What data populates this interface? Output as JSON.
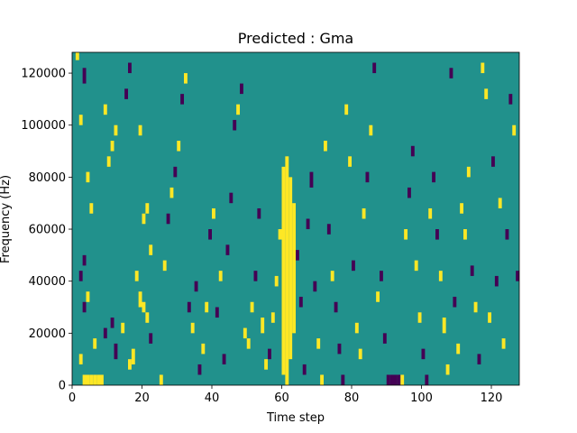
{
  "chart_data": {
    "type": "heatmap",
    "title": "Predicted : Gma",
    "xlabel": "Time step",
    "ylabel": "Frequency (Hz)",
    "xlim": [
      0,
      128
    ],
    "ylim": [
      0,
      128000
    ],
    "xticks": [
      0,
      20,
      40,
      60,
      80,
      100,
      120
    ],
    "yticks": [
      0,
      20000,
      40000,
      60000,
      80000,
      100000,
      120000
    ],
    "xtick_labels": [
      "0",
      "20",
      "40",
      "60",
      "80",
      "100",
      "120"
    ],
    "ytick_labels": [
      "0",
      "20000",
      "40000",
      "60000",
      "80000",
      "100000",
      "120000"
    ],
    "colors": {
      "background": "#21918c",
      "high": "#fde725",
      "low": "#440154"
    },
    "n_time_steps": 128,
    "n_freq_bins": 128,
    "freq_bin_width_hz": 1000,
    "background_value": 0,
    "cells": [
      {
        "t": 1,
        "f0": 125000,
        "f1": 128000,
        "v": 1
      },
      {
        "t": 2,
        "f0": 100000,
        "f1": 104000,
        "v": 1
      },
      {
        "t": 3,
        "f0": 116000,
        "f1": 122000,
        "v": -1
      },
      {
        "t": 4,
        "f0": 78000,
        "f1": 82000,
        "v": 1
      },
      {
        "t": 5,
        "f0": 66000,
        "f1": 70000,
        "v": 1
      },
      {
        "t": 2,
        "f0": 40000,
        "f1": 44000,
        "v": -1
      },
      {
        "t": 3,
        "f0": 46000,
        "f1": 50000,
        "v": -1
      },
      {
        "t": 2,
        "f0": 8000,
        "f1": 12000,
        "v": 1
      },
      {
        "t": 3,
        "f0": 0,
        "f1": 4000,
        "v": 1
      },
      {
        "t": 4,
        "f0": 0,
        "f1": 4000,
        "v": 1
      },
      {
        "t": 5,
        "f0": 0,
        "f1": 4000,
        "v": 1
      },
      {
        "t": 6,
        "f0": 0,
        "f1": 4000,
        "v": 1
      },
      {
        "t": 7,
        "f0": 0,
        "f1": 4000,
        "v": 1
      },
      {
        "t": 8,
        "f0": 0,
        "f1": 4000,
        "v": 1
      },
      {
        "t": 3,
        "f0": 28000,
        "f1": 32000,
        "v": -1
      },
      {
        "t": 4,
        "f0": 32000,
        "f1": 36000,
        "v": 1
      },
      {
        "t": 6,
        "f0": 14000,
        "f1": 18000,
        "v": 1
      },
      {
        "t": 9,
        "f0": 18000,
        "f1": 22000,
        "v": -1
      },
      {
        "t": 11,
        "f0": 22000,
        "f1": 26000,
        "v": -1
      },
      {
        "t": 12,
        "f0": 10000,
        "f1": 16000,
        "v": -1
      },
      {
        "t": 10,
        "f0": 84000,
        "f1": 88000,
        "v": 1
      },
      {
        "t": 11,
        "f0": 90000,
        "f1": 94000,
        "v": 1
      },
      {
        "t": 12,
        "f0": 96000,
        "f1": 100000,
        "v": 1
      },
      {
        "t": 9,
        "f0": 104000,
        "f1": 108000,
        "v": 1
      },
      {
        "t": 14,
        "f0": 20000,
        "f1": 24000,
        "v": 1
      },
      {
        "t": 16,
        "f0": 6000,
        "f1": 10000,
        "v": 1
      },
      {
        "t": 17,
        "f0": 8000,
        "f1": 14000,
        "v": 1
      },
      {
        "t": 18,
        "f0": 40000,
        "f1": 44000,
        "v": 1
      },
      {
        "t": 19,
        "f0": 30000,
        "f1": 36000,
        "v": 1
      },
      {
        "t": 20,
        "f0": 62000,
        "f1": 66000,
        "v": 1
      },
      {
        "t": 21,
        "f0": 66000,
        "f1": 70000,
        "v": 1
      },
      {
        "t": 22,
        "f0": 50000,
        "f1": 54000,
        "v": 1
      },
      {
        "t": 15,
        "f0": 110000,
        "f1": 114000,
        "v": -1
      },
      {
        "t": 16,
        "f0": 120000,
        "f1": 124000,
        "v": -1
      },
      {
        "t": 19,
        "f0": 96000,
        "f1": 100000,
        "v": 1
      },
      {
        "t": 20,
        "f0": 28000,
        "f1": 32000,
        "v": 1
      },
      {
        "t": 21,
        "f0": 24000,
        "f1": 28000,
        "v": 1
      },
      {
        "t": 22,
        "f0": 16000,
        "f1": 20000,
        "v": -1
      },
      {
        "t": 25,
        "f0": 0,
        "f1": 4000,
        "v": 1
      },
      {
        "t": 26,
        "f0": 44000,
        "f1": 48000,
        "v": 1
      },
      {
        "t": 27,
        "f0": 62000,
        "f1": 66000,
        "v": -1
      },
      {
        "t": 28,
        "f0": 72000,
        "f1": 76000,
        "v": 1
      },
      {
        "t": 29,
        "f0": 80000,
        "f1": 84000,
        "v": -1
      },
      {
        "t": 30,
        "f0": 90000,
        "f1": 94000,
        "v": 1
      },
      {
        "t": 31,
        "f0": 108000,
        "f1": 112000,
        "v": -1
      },
      {
        "t": 32,
        "f0": 116000,
        "f1": 120000,
        "v": 1
      },
      {
        "t": 33,
        "f0": 28000,
        "f1": 32000,
        "v": -1
      },
      {
        "t": 34,
        "f0": 20000,
        "f1": 24000,
        "v": 1
      },
      {
        "t": 35,
        "f0": 36000,
        "f1": 40000,
        "v": -1
      },
      {
        "t": 36,
        "f0": 4000,
        "f1": 8000,
        "v": -1
      },
      {
        "t": 37,
        "f0": 12000,
        "f1": 16000,
        "v": 1
      },
      {
        "t": 38,
        "f0": 28000,
        "f1": 32000,
        "v": 1
      },
      {
        "t": 39,
        "f0": 56000,
        "f1": 60000,
        "v": -1
      },
      {
        "t": 40,
        "f0": 64000,
        "f1": 68000,
        "v": 1
      },
      {
        "t": 41,
        "f0": 26000,
        "f1": 30000,
        "v": -1
      },
      {
        "t": 42,
        "f0": 40000,
        "f1": 44000,
        "v": 1
      },
      {
        "t": 43,
        "f0": 8000,
        "f1": 12000,
        "v": -1
      },
      {
        "t": 44,
        "f0": 50000,
        "f1": 54000,
        "v": -1
      },
      {
        "t": 45,
        "f0": 70000,
        "f1": 74000,
        "v": -1
      },
      {
        "t": 46,
        "f0": 98000,
        "f1": 102000,
        "v": -1
      },
      {
        "t": 47,
        "f0": 104000,
        "f1": 108000,
        "v": 1
      },
      {
        "t": 48,
        "f0": 112000,
        "f1": 116000,
        "v": -1
      },
      {
        "t": 49,
        "f0": 18000,
        "f1": 22000,
        "v": 1
      },
      {
        "t": 50,
        "f0": 14000,
        "f1": 18000,
        "v": 1
      },
      {
        "t": 51,
        "f0": 28000,
        "f1": 32000,
        "v": 1
      },
      {
        "t": 52,
        "f0": 40000,
        "f1": 44000,
        "v": -1
      },
      {
        "t": 53,
        "f0": 64000,
        "f1": 68000,
        "v": -1
      },
      {
        "t": 54,
        "f0": 20000,
        "f1": 26000,
        "v": 1
      },
      {
        "t": 55,
        "f0": 6000,
        "f1": 10000,
        "v": 1
      },
      {
        "t": 56,
        "f0": 10000,
        "f1": 14000,
        "v": -1
      },
      {
        "t": 57,
        "f0": 24000,
        "f1": 28000,
        "v": 1
      },
      {
        "t": 58,
        "f0": 38000,
        "f1": 42000,
        "v": 1
      },
      {
        "t": 59,
        "f0": 56000,
        "f1": 60000,
        "v": 1
      },
      {
        "t": 60,
        "f0": 4000,
        "f1": 84000,
        "v": 1
      },
      {
        "t": 61,
        "f0": 0,
        "f1": 88000,
        "v": 1
      },
      {
        "t": 62,
        "f0": 10000,
        "f1": 80000,
        "v": 1
      },
      {
        "t": 63,
        "f0": 20000,
        "f1": 70000,
        "v": 1
      },
      {
        "t": 64,
        "f0": 48000,
        "f1": 52000,
        "v": -1
      },
      {
        "t": 65,
        "f0": 30000,
        "f1": 34000,
        "v": -1
      },
      {
        "t": 66,
        "f0": 4000,
        "f1": 8000,
        "v": -1
      },
      {
        "t": 67,
        "f0": 60000,
        "f1": 64000,
        "v": -1
      },
      {
        "t": 68,
        "f0": 76000,
        "f1": 82000,
        "v": -1
      },
      {
        "t": 69,
        "f0": 36000,
        "f1": 40000,
        "v": -1
      },
      {
        "t": 70,
        "f0": 14000,
        "f1": 18000,
        "v": 1
      },
      {
        "t": 71,
        "f0": 0,
        "f1": 4000,
        "v": 1
      },
      {
        "t": 72,
        "f0": 90000,
        "f1": 94000,
        "v": 1
      },
      {
        "t": 73,
        "f0": 58000,
        "f1": 62000,
        "v": -1
      },
      {
        "t": 74,
        "f0": 40000,
        "f1": 44000,
        "v": 1
      },
      {
        "t": 75,
        "f0": 28000,
        "f1": 32000,
        "v": -1
      },
      {
        "t": 76,
        "f0": 12000,
        "f1": 16000,
        "v": -1
      },
      {
        "t": 77,
        "f0": 0,
        "f1": 4000,
        "v": -1
      },
      {
        "t": 78,
        "f0": 104000,
        "f1": 108000,
        "v": 1
      },
      {
        "t": 79,
        "f0": 84000,
        "f1": 88000,
        "v": 1
      },
      {
        "t": 80,
        "f0": 44000,
        "f1": 48000,
        "v": -1
      },
      {
        "t": 81,
        "f0": 20000,
        "f1": 24000,
        "v": 1
      },
      {
        "t": 82,
        "f0": 10000,
        "f1": 14000,
        "v": 1
      },
      {
        "t": 83,
        "f0": 64000,
        "f1": 68000,
        "v": 1
      },
      {
        "t": 84,
        "f0": 78000,
        "f1": 82000,
        "v": -1
      },
      {
        "t": 85,
        "f0": 96000,
        "f1": 100000,
        "v": 1
      },
      {
        "t": 86,
        "f0": 120000,
        "f1": 124000,
        "v": -1
      },
      {
        "t": 87,
        "f0": 32000,
        "f1": 36000,
        "v": 1
      },
      {
        "t": 88,
        "f0": 40000,
        "f1": 44000,
        "v": -1
      },
      {
        "t": 89,
        "f0": 16000,
        "f1": 20000,
        "v": -1
      },
      {
        "t": 90,
        "f0": 0,
        "f1": 4000,
        "v": -1
      },
      {
        "t": 91,
        "f0": 0,
        "f1": 4000,
        "v": -1
      },
      {
        "t": 92,
        "f0": 0,
        "f1": 4000,
        "v": -1
      },
      {
        "t": 93,
        "f0": 0,
        "f1": 4000,
        "v": -1
      },
      {
        "t": 94,
        "f0": 0,
        "f1": 4000,
        "v": 1
      },
      {
        "t": 95,
        "f0": 56000,
        "f1": 60000,
        "v": 1
      },
      {
        "t": 96,
        "f0": 72000,
        "f1": 76000,
        "v": -1
      },
      {
        "t": 97,
        "f0": 88000,
        "f1": 92000,
        "v": -1
      },
      {
        "t": 98,
        "f0": 44000,
        "f1": 48000,
        "v": 1
      },
      {
        "t": 99,
        "f0": 24000,
        "f1": 28000,
        "v": 1
      },
      {
        "t": 100,
        "f0": 10000,
        "f1": 14000,
        "v": -1
      },
      {
        "t": 101,
        "f0": 0,
        "f1": 4000,
        "v": -1
      },
      {
        "t": 102,
        "f0": 64000,
        "f1": 68000,
        "v": 1
      },
      {
        "t": 103,
        "f0": 78000,
        "f1": 82000,
        "v": -1
      },
      {
        "t": 104,
        "f0": 56000,
        "f1": 60000,
        "v": -1
      },
      {
        "t": 105,
        "f0": 40000,
        "f1": 44000,
        "v": 1
      },
      {
        "t": 106,
        "f0": 20000,
        "f1": 26000,
        "v": 1
      },
      {
        "t": 107,
        "f0": 4000,
        "f1": 8000,
        "v": 1
      },
      {
        "t": 108,
        "f0": 118000,
        "f1": 122000,
        "v": -1
      },
      {
        "t": 109,
        "f0": 30000,
        "f1": 34000,
        "v": -1
      },
      {
        "t": 110,
        "f0": 12000,
        "f1": 16000,
        "v": 1
      },
      {
        "t": 111,
        "f0": 66000,
        "f1": 70000,
        "v": 1
      },
      {
        "t": 112,
        "f0": 56000,
        "f1": 60000,
        "v": 1
      },
      {
        "t": 113,
        "f0": 80000,
        "f1": 84000,
        "v": 1
      },
      {
        "t": 114,
        "f0": 42000,
        "f1": 46000,
        "v": -1
      },
      {
        "t": 115,
        "f0": 28000,
        "f1": 32000,
        "v": 1
      },
      {
        "t": 116,
        "f0": 8000,
        "f1": 12000,
        "v": -1
      },
      {
        "t": 117,
        "f0": 120000,
        "f1": 124000,
        "v": 1
      },
      {
        "t": 118,
        "f0": 110000,
        "f1": 114000,
        "v": 1
      },
      {
        "t": 119,
        "f0": 24000,
        "f1": 28000,
        "v": 1
      },
      {
        "t": 120,
        "f0": 84000,
        "f1": 88000,
        "v": -1
      },
      {
        "t": 121,
        "f0": 38000,
        "f1": 42000,
        "v": -1
      },
      {
        "t": 122,
        "f0": 68000,
        "f1": 72000,
        "v": 1
      },
      {
        "t": 123,
        "f0": 14000,
        "f1": 18000,
        "v": 1
      },
      {
        "t": 124,
        "f0": 56000,
        "f1": 60000,
        "v": -1
      },
      {
        "t": 125,
        "f0": 108000,
        "f1": 112000,
        "v": -1
      },
      {
        "t": 126,
        "f0": 96000,
        "f1": 100000,
        "v": 1
      },
      {
        "t": 127,
        "f0": 40000,
        "f1": 44000,
        "v": -1
      }
    ]
  }
}
